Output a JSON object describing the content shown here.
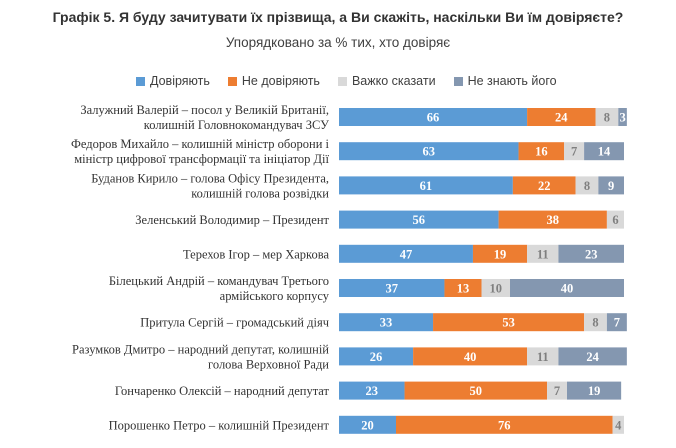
{
  "chart_data": {
    "type": "bar",
    "orientation": "horizontal",
    "stacked": true,
    "title": "Графік 5. Я буду зачитувати їх прізвища, а Ви скажіть, наскільки Ви їм довіряєте?",
    "subtitle": "Упорядковано за % тих, хто довіряє",
    "legend_position": "top",
    "grid": false,
    "xlim": [
      0,
      100
    ],
    "categories": [
      [
        "Залужний Валерій – посол у Великій Британії,",
        "колишній Головнокомандувач ЗСУ"
      ],
      [
        "Федоров Михайло – колишній міністр оборони і",
        "міністр цифрової трансформації та ініціатор Дії"
      ],
      [
        "Буданов Кирило – голова Офісу Президента,",
        "колишній голова розвідки"
      ],
      [
        "Зеленський Володимир – Президент"
      ],
      [
        "Терехов Ігор – мер Харкова"
      ],
      [
        "Білецький Андрій – командувач Третього",
        "армійського корпусу"
      ],
      [
        "Притула Сергій – громадський діяч"
      ],
      [
        "Разумков Дмитро – народний депутат, колишній",
        "голова Верховної Ради"
      ],
      [
        "Гончаренко Олексій – народний депутат"
      ],
      [
        "Порошенко Петро – колишній Президент"
      ]
    ],
    "series": [
      {
        "name": "Довіряють",
        "color": "#5b9bd5",
        "label_color": "#ffffff",
        "values": [
          66,
          63,
          61,
          56,
          47,
          37,
          33,
          26,
          23,
          20
        ]
      },
      {
        "name": "Не довіряють",
        "color": "#ed7d31",
        "label_color": "#ffffff",
        "values": [
          24,
          16,
          22,
          38,
          19,
          13,
          53,
          40,
          50,
          76
        ]
      },
      {
        "name": "Важко сказати",
        "color": "#d9d9d9",
        "label_color": "#7f7f7f",
        "values": [
          8,
          7,
          8,
          6,
          11,
          10,
          8,
          11,
          7,
          4
        ]
      },
      {
        "name": "Не знають його",
        "color": "#8497b0",
        "label_color": "#ffffff",
        "values": [
          3,
          14,
          9,
          0,
          23,
          40,
          7,
          24,
          19,
          0
        ]
      }
    ]
  }
}
